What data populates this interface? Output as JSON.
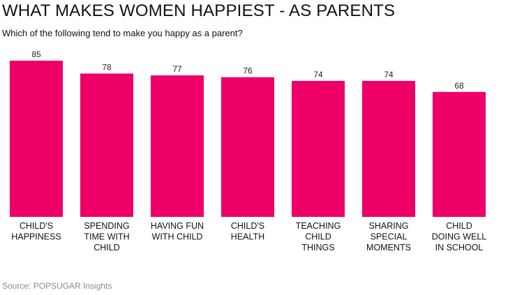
{
  "title": "WHAT MAKES WOMEN HAPPIEST - AS PARENTS",
  "subtitle": "Which of the following tend to make you happy as a parent?",
  "source": "Source: POPSUGAR Insights",
  "chart_data": {
    "type": "bar",
    "categories": [
      [
        "CHILD'S",
        "HAPPINESS"
      ],
      [
        "SPENDING",
        "TIME WITH",
        "CHILD"
      ],
      [
        "HAVING FUN",
        "WITH CHILD"
      ],
      [
        "CHILD'S",
        "HEALTH"
      ],
      [
        "TEACHING",
        "CHILD",
        "THINGS"
      ],
      [
        "SHARING",
        "SPECIAL",
        "MOMENTS"
      ],
      [
        "CHILD",
        "DOING WELL",
        "IN SCHOOL"
      ]
    ],
    "values": [
      85,
      78,
      77,
      76,
      74,
      74,
      68
    ],
    "ylim": [
      0,
      85
    ],
    "bar_color": "#ef0068",
    "grid": false,
    "legend": "none"
  }
}
